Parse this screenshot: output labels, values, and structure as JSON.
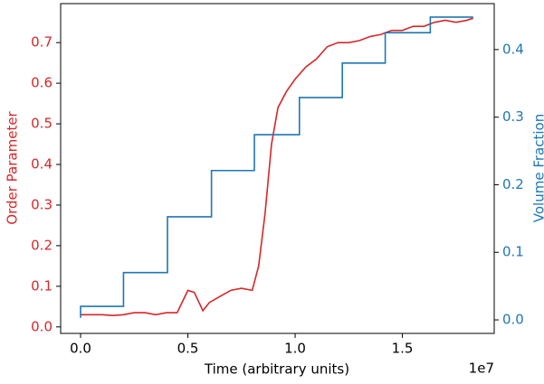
{
  "chart_data": {
    "type": "line",
    "xlabel": "Time (arbitrary units)",
    "ylabel": "Order Parameter",
    "y2label": "Volume Fraction",
    "x_offset_label": "1e7",
    "xlim": [
      -930000,
      19280000
    ],
    "xticks": [
      {
        "value": 0,
        "label": "0.0"
      },
      {
        "value": 5000000,
        "label": "0.5"
      },
      {
        "value": 10000000,
        "label": "1.0"
      },
      {
        "value": 15000000,
        "label": "1.5"
      }
    ],
    "ylim": [
      -0.016,
      0.796
    ],
    "yticks": [
      {
        "value": 0,
        "label": "0.0"
      },
      0.1,
      0.2,
      0.3,
      0.4,
      0.5,
      0.6,
      0.7
    ],
    "y2lim": [
      -0.02,
      0.468
    ],
    "y2ticks": [
      {
        "value": 0,
        "label": "0.0"
      },
      0.1,
      0.2,
      0.3,
      0.4
    ],
    "ycolor": "#d62728",
    "y2color": "#1f77b4",
    "series": [
      {
        "name": "Order Parameter",
        "color": "#d62728",
        "x": [
          0,
          500000,
          1000000,
          1500000,
          2000000,
          2500000,
          3000000,
          3500000,
          4000000,
          4500000,
          5000000,
          5300000,
          5700000,
          6000000,
          6500000,
          7000000,
          7500000,
          8000000,
          8300000,
          8600000,
          8900000,
          9200000,
          9600000,
          10000000,
          10500000,
          11000000,
          11500000,
          12000000,
          12500000,
          13000000,
          13500000,
          14000000,
          14500000,
          15000000,
          15500000,
          16000000,
          16500000,
          17000000,
          17500000,
          18000000,
          18300000
        ],
        "values": [
          0.03,
          0.03,
          0.03,
          0.028,
          0.03,
          0.035,
          0.035,
          0.03,
          0.035,
          0.035,
          0.09,
          0.085,
          0.04,
          0.06,
          0.075,
          0.09,
          0.095,
          0.09,
          0.15,
          0.28,
          0.45,
          0.54,
          0.58,
          0.61,
          0.64,
          0.66,
          0.69,
          0.7,
          0.7,
          0.705,
          0.715,
          0.72,
          0.73,
          0.73,
          0.74,
          0.74,
          0.75,
          0.755,
          0.75,
          0.755,
          0.76
        ]
      },
      {
        "name": "Volume Fraction",
        "color": "#1f77b4",
        "axis": "y2",
        "x": [
          0,
          0,
          2000000,
          2000000,
          4050000,
          4050000,
          6100000,
          6100000,
          8100000,
          8100000,
          10200000,
          10200000,
          12200000,
          12200000,
          14200000,
          14200000,
          16300000,
          16300000,
          18300000
        ],
        "values": [
          0.003,
          0.02,
          0.02,
          0.07,
          0.07,
          0.1525,
          0.1525,
          0.221,
          0.221,
          0.274,
          0.274,
          0.329,
          0.329,
          0.38,
          0.38,
          0.425,
          0.425,
          0.448,
          0.448
        ]
      }
    ]
  }
}
